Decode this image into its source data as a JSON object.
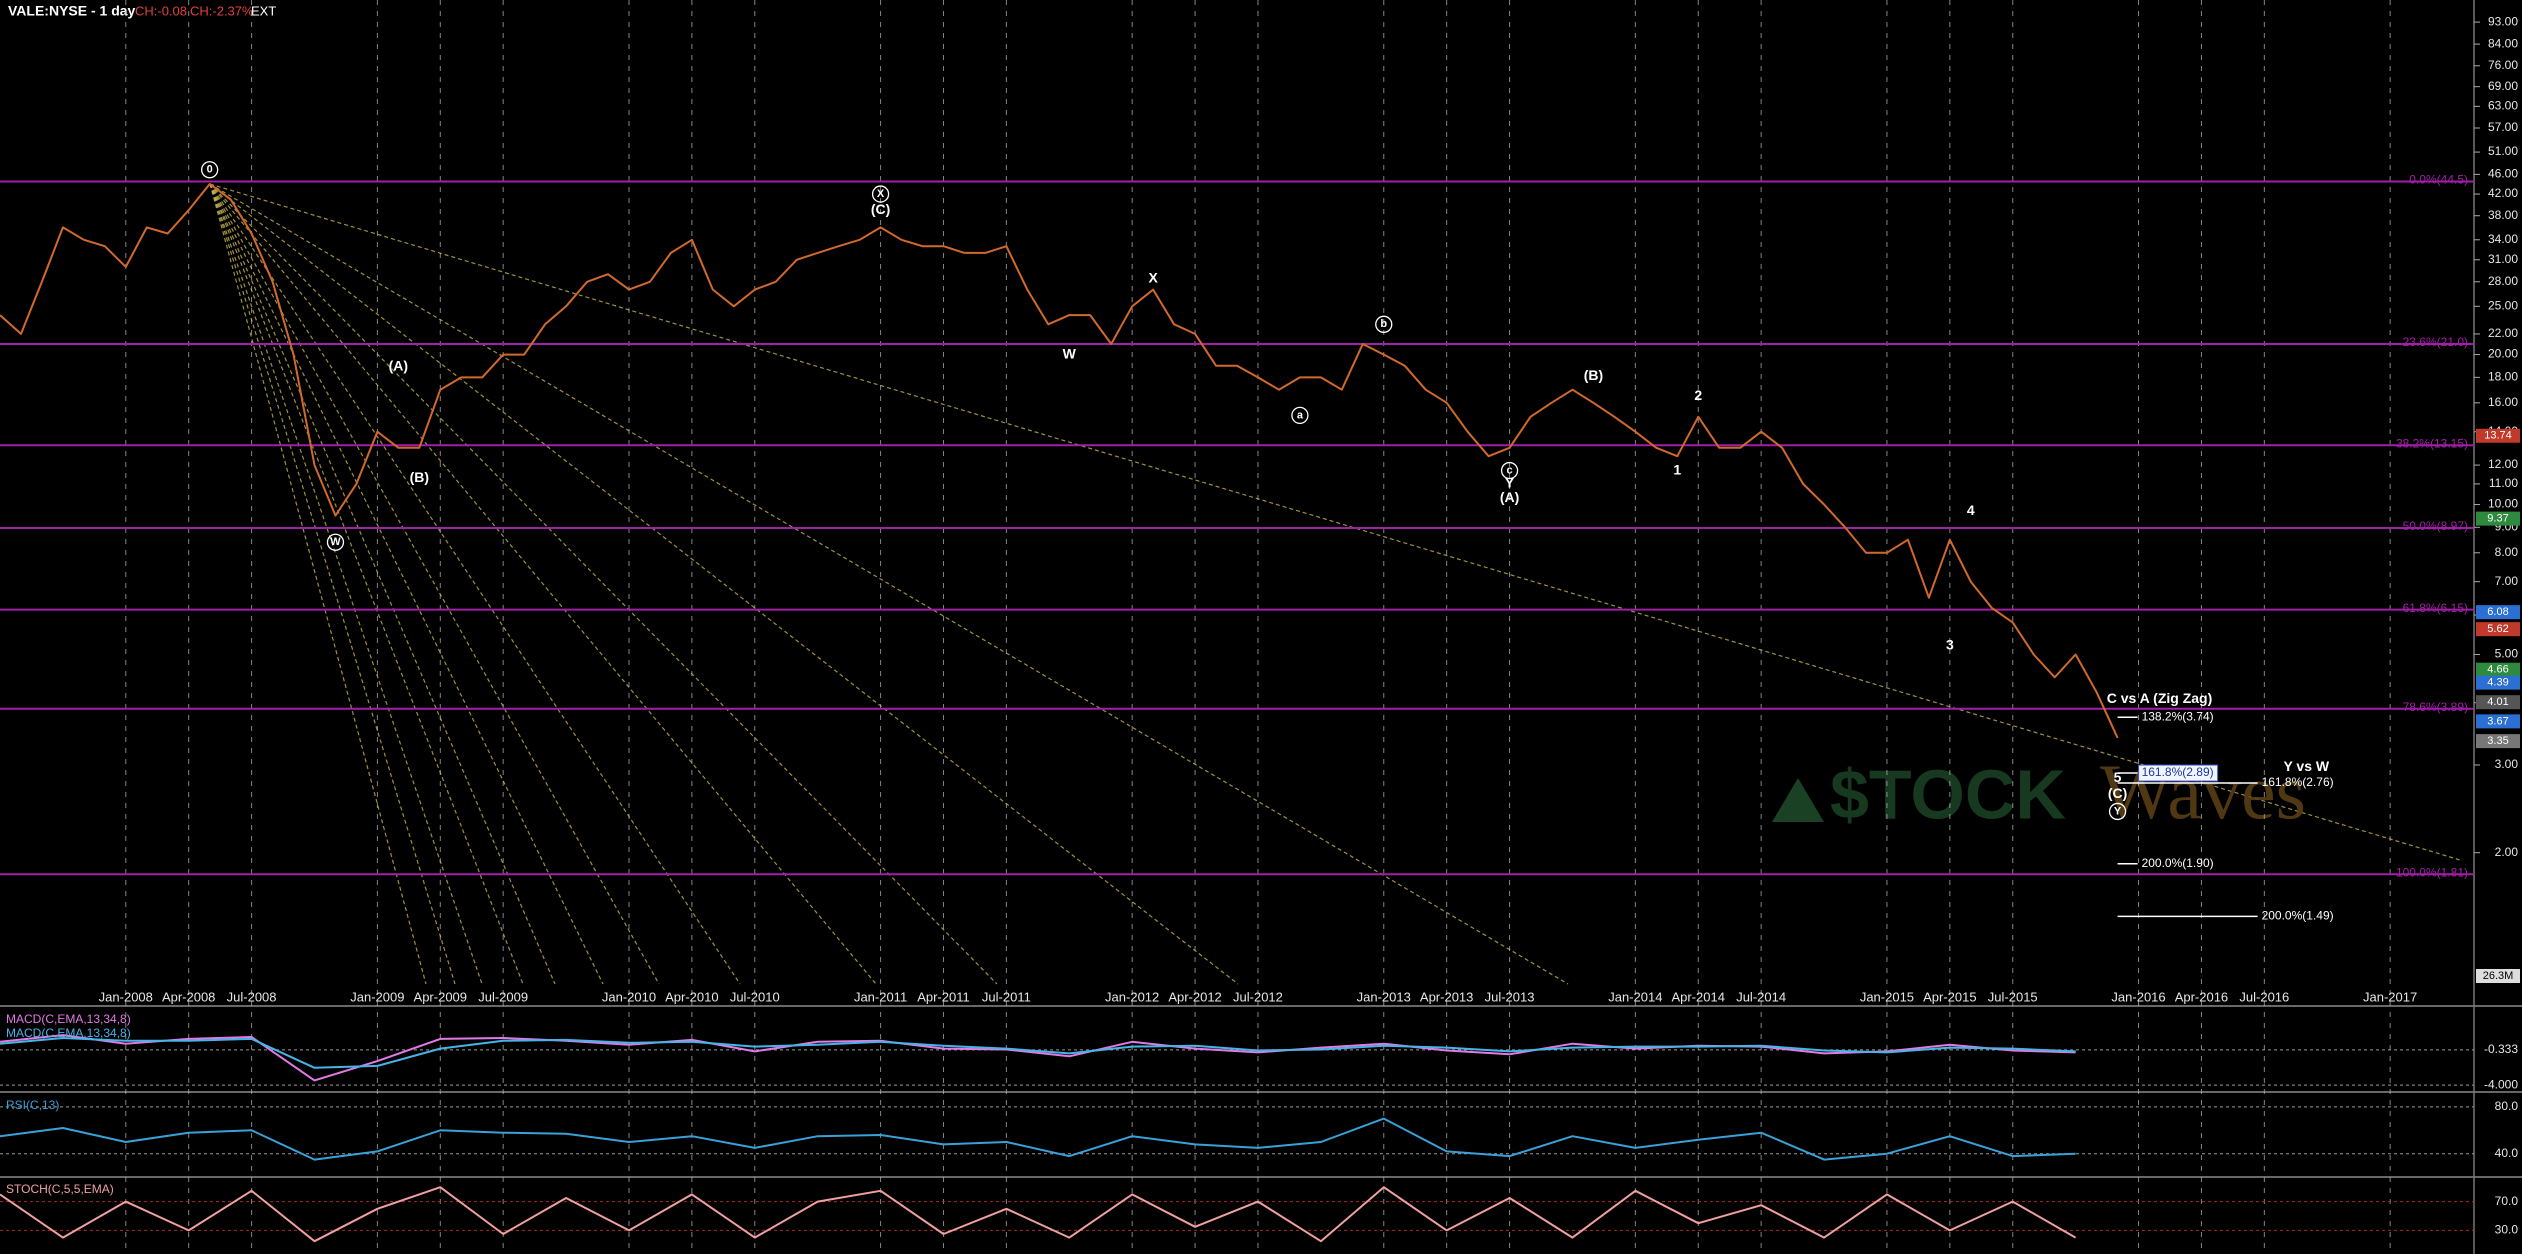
{
  "header": {
    "symbol": "VALE:NYSE - 1 day",
    "change": "CH:-0.08",
    "change_pct": "CH:-2.37%",
    "session": "EXT"
  },
  "watermark": {
    "brand": "$TOCK",
    "waves": "Waves"
  },
  "chart_data": [
    {
      "type": "line",
      "log_scale": true,
      "grid": "x",
      "color": "#d2692c",
      "x": [
        "2007-07",
        "2007-08",
        "2007-09",
        "2007-10",
        "2007-11",
        "2007-12",
        "2008-01",
        "2008-02",
        "2008-03",
        "2008-04",
        "2008-05",
        "2008-06",
        "2008-07",
        "2008-08",
        "2008-09",
        "2008-10",
        "2008-11",
        "2008-12",
        "2009-01",
        "2009-02",
        "2009-03",
        "2009-04",
        "2009-05",
        "2009-06",
        "2009-07",
        "2009-08",
        "2009-09",
        "2009-10",
        "2009-11",
        "2009-12",
        "2010-01",
        "2010-02",
        "2010-03",
        "2010-04",
        "2010-05",
        "2010-06",
        "2010-07",
        "2010-08",
        "2010-09",
        "2010-10",
        "2010-11",
        "2010-12",
        "2011-01",
        "2011-02",
        "2011-03",
        "2011-04",
        "2011-05",
        "2011-06",
        "2011-07",
        "2011-08",
        "2011-09",
        "2011-10",
        "2011-11",
        "2011-12",
        "2012-01",
        "2012-02",
        "2012-03",
        "2012-04",
        "2012-05",
        "2012-06",
        "2012-07",
        "2012-08",
        "2012-09",
        "2012-10",
        "2012-11",
        "2012-12",
        "2013-01",
        "2013-02",
        "2013-03",
        "2013-04",
        "2013-05",
        "2013-06",
        "2013-07",
        "2013-08",
        "2013-09",
        "2013-10",
        "2013-11",
        "2013-12",
        "2014-01",
        "2014-02",
        "2014-03",
        "2014-04",
        "2014-05",
        "2014-06",
        "2014-07",
        "2014-08",
        "2014-09",
        "2014-10",
        "2014-11",
        "2014-12",
        "2015-01",
        "2015-02",
        "2015-03",
        "2015-04",
        "2015-05",
        "2015-06",
        "2015-07",
        "2015-08",
        "2015-09",
        "2015-10",
        "2015-11",
        "2015-12"
      ],
      "values": [
        24,
        22,
        28,
        36,
        34,
        33,
        30,
        36,
        35,
        39,
        44,
        41,
        35,
        28,
        20,
        12,
        9.5,
        11,
        14,
        13,
        13,
        17,
        18,
        18,
        20,
        20,
        23,
        25,
        28,
        29,
        27,
        28,
        32,
        34,
        27,
        25,
        27,
        28,
        31,
        32,
        33,
        34,
        36,
        34,
        33,
        33,
        32,
        32,
        33,
        27,
        23,
        24,
        24,
        21,
        25,
        27,
        23,
        22,
        19,
        19,
        18,
        17,
        18,
        18,
        17,
        21,
        20,
        19,
        17,
        16,
        14,
        12.5,
        13,
        15,
        16,
        17,
        16,
        15,
        14,
        13,
        12.5,
        15,
        13,
        13,
        14,
        13,
        11,
        10,
        9,
        8,
        8,
        8.5,
        6.5,
        8.5,
        7,
        6.2,
        5.8,
        5,
        4.5,
        5,
        4.2,
        3.4
      ],
      "xlim": [
        "2007-07",
        "2017-05"
      ],
      "xticks": [
        {
          "value": "2008-01",
          "label": "Jan-2008"
        },
        {
          "value": "2008-04",
          "label": "Apr-2008"
        },
        {
          "value": "2008-07",
          "label": "Jul-2008"
        },
        {
          "value": "2009-01",
          "label": "Jan-2009"
        },
        {
          "value": "2009-04",
          "label": "Apr-2009"
        },
        {
          "value": "2009-07",
          "label": "Jul-2009"
        },
        {
          "value": "2010-01",
          "label": "Jan-2010"
        },
        {
          "value": "2010-04",
          "label": "Apr-2010"
        },
        {
          "value": "2010-07",
          "label": "Jul-2010"
        },
        {
          "value": "2011-01",
          "label": "Jan-2011"
        },
        {
          "value": "2011-04",
          "label": "Apr-2011"
        },
        {
          "value": "2011-07",
          "label": "Jul-2011"
        },
        {
          "value": "2012-01",
          "label": "Jan-2012"
        },
        {
          "value": "2012-04",
          "label": "Apr-2012"
        },
        {
          "value": "2012-07",
          "label": "Jul-2012"
        },
        {
          "value": "2013-01",
          "label": "Jan-2013"
        },
        {
          "value": "2013-04",
          "label": "Apr-2013"
        },
        {
          "value": "2013-07",
          "label": "Jul-2013"
        },
        {
          "value": "2014-01",
          "label": "Jan-2014"
        },
        {
          "value": "2014-04",
          "label": "Apr-2014"
        },
        {
          "value": "2014-07",
          "label": "Jul-2014"
        },
        {
          "value": "2015-01",
          "label": "Jan-2015"
        },
        {
          "value": "2015-04",
          "label": "Apr-2015"
        },
        {
          "value": "2015-07",
          "label": "Jul-2015"
        },
        {
          "value": "2016-01",
          "label": "Jan-2016"
        },
        {
          "value": "2016-04",
          "label": "Apr-2016"
        },
        {
          "value": "2016-07",
          "label": "Jul-2016"
        },
        {
          "value": "2017-01",
          "label": "Jan-2017"
        }
      ],
      "ylim": [
        1.09,
        103
      ],
      "yticks": [
        {
          "value": 93,
          "label": "93.00"
        },
        {
          "value": 84,
          "label": "84.00"
        },
        {
          "value": 76,
          "label": "76.00"
        },
        {
          "value": 69,
          "label": "69.00"
        },
        {
          "value": 63,
          "label": "63.00"
        },
        {
          "value": 57,
          "label": "57.00"
        },
        {
          "value": 51,
          "label": "51.00"
        },
        {
          "value": 46,
          "label": "46.00"
        },
        {
          "value": 42,
          "label": "42.00"
        },
        {
          "value": 38,
          "label": "38.00"
        },
        {
          "value": 34,
          "label": "34.00"
        },
        {
          "value": 31,
          "label": "31.00"
        },
        {
          "value": 28,
          "label": "28.00"
        },
        {
          "value": 25,
          "label": "25.00"
        },
        {
          "value": 22,
          "label": "22.00"
        },
        {
          "value": 20,
          "label": "20.00"
        },
        {
          "value": 18,
          "label": "18.00"
        },
        {
          "value": 16,
          "label": "16.00"
        },
        {
          "value": 14,
          "label": "14.00"
        },
        {
          "value": 12,
          "label": "12.00"
        },
        {
          "value": 11,
          "label": "11.00"
        },
        {
          "value": 10,
          "label": "10.00"
        },
        {
          "value": 9,
          "label": "9.00"
        },
        {
          "value": 8,
          "label": "8.00"
        },
        {
          "value": 7,
          "label": "7.00"
        },
        {
          "value": 6,
          "label": "6.00"
        },
        {
          "value": 5,
          "label": "5.00"
        },
        {
          "value": 4,
          "label": "4.00"
        },
        {
          "value": 3,
          "label": "3.00"
        },
        {
          "value": 2,
          "label": "2.00"
        }
      ],
      "fib_color": "#a21fa8",
      "fib_levels": [
        {
          "value": 44.5,
          "label": "0.0%(44.5)"
        },
        {
          "value": 21,
          "label": "23.6%(21.0)"
        },
        {
          "value": 13.15,
          "label": "38.2%(13.15)"
        },
        {
          "value": 8.97,
          "label": "50.0%(8.97)"
        },
        {
          "value": 6.15,
          "label": "61.8%(6.15)"
        },
        {
          "value": 3.89,
          "label": "78.6%(3.89)"
        },
        {
          "value": 1.81,
          "label": "100.0%(1.81)"
        }
      ],
      "projections": [
        {
          "value": 3.74,
          "label": "138.2%(3.74)"
        },
        {
          "value": 2.89,
          "label": "161.8%(2.89)",
          "boxed": true
        },
        {
          "value": 2.76,
          "label": "161.8%(2.76)",
          "extended": true
        },
        {
          "value": 1.9,
          "label": "200.0%(1.90)"
        },
        {
          "value": 1.49,
          "label": "200.0%(1.49)",
          "extended": true
        }
      ],
      "annotations": [
        {
          "text": "0",
          "x": "2008-05",
          "y": 47,
          "circled": true
        },
        {
          "text": "X",
          "x": "2011-01",
          "y": 42,
          "circled": true
        },
        {
          "text": "(C)",
          "x": "2011-01",
          "y": 39,
          "circled": false
        },
        {
          "text": "(A)",
          "x": "2009-02",
          "y": 18.9,
          "circled": false
        },
        {
          "text": "(B)",
          "x": "2009-03",
          "y": 11.3,
          "circled": false
        },
        {
          "text": "W",
          "x": "2008-11",
          "y": 8.4,
          "circled": true
        },
        {
          "text": "W",
          "x": "2011-10",
          "y": 20,
          "circled": false
        },
        {
          "text": "X",
          "x": "2012-02",
          "y": 28.4,
          "circled": false
        },
        {
          "text": "a",
          "x": "2012-09",
          "y": 15.1,
          "circled": true
        },
        {
          "text": "b",
          "x": "2013-01",
          "y": 23,
          "circled": true
        },
        {
          "text": "c",
          "x": "2013-07",
          "y": 11.7,
          "circled": true
        },
        {
          "text": "Y",
          "x": "2013-07",
          "y": 11,
          "circled": false
        },
        {
          "text": "(A)",
          "x": "2013-07",
          "y": 10.3,
          "circled": false
        },
        {
          "text": "(B)",
          "x": "2013-11",
          "y": 18.1,
          "circled": false
        },
        {
          "text": "2",
          "x": "2014-04",
          "y": 16.5,
          "circled": false
        },
        {
          "text": "1",
          "x": "2014-03",
          "y": 11.7,
          "circled": false
        },
        {
          "text": "4",
          "x": "2015-05",
          "y": 9.7,
          "circled": false
        },
        {
          "text": "3",
          "x": "2015-04",
          "y": 5.2,
          "circled": false
        },
        {
          "text": "5",
          "x": "2015-12",
          "y": 2.82,
          "circled": false
        },
        {
          "text": "(C)",
          "x": "2015-12",
          "y": 2.62,
          "circled": false
        },
        {
          "text": "Y",
          "x": "2015-12",
          "y": 2.42,
          "circled": true
        },
        {
          "text": "C vs A (Zig Zag)",
          "x": "2016-02",
          "y": 4.06,
          "circled": false
        },
        {
          "text": "Y vs W",
          "x": "2016-09",
          "y": 2.97,
          "circled": false
        }
      ],
      "price_tags": [
        {
          "value": 13.74,
          "color": "#c0392b"
        },
        {
          "value": 9.37,
          "color": "#2e8b3e"
        },
        {
          "value": 6.08,
          "color": "#2a6fd1"
        },
        {
          "value": 5.62,
          "color": "#c0392b"
        },
        {
          "value": 4.66,
          "color": "#2e8b3e"
        },
        {
          "value": 4.39,
          "color": "#2a6fd1"
        },
        {
          "value": 4.01,
          "color": "#555555"
        },
        {
          "value": 3.67,
          "color": "#2a6fd1"
        },
        {
          "value": 3.35,
          "color": "#777777"
        }
      ],
      "volume_label": "26.3M"
    },
    {
      "type": "line",
      "grid": true,
      "grid_color": "#9a9a9a",
      "x": [
        "2007-07",
        "2007-10",
        "2008-01",
        "2008-04",
        "2008-07",
        "2008-10",
        "2009-01",
        "2009-04",
        "2009-07",
        "2009-10",
        "2010-01",
        "2010-04",
        "2010-07",
        "2010-10",
        "2011-01",
        "2011-04",
        "2011-07",
        "2011-10",
        "2012-01",
        "2012-04",
        "2012-07",
        "2012-10",
        "2013-01",
        "2013-04",
        "2013-07",
        "2013-10",
        "2014-01",
        "2014-04",
        "2014-07",
        "2014-10",
        "2015-01",
        "2015-04",
        "2015-07",
        "2015-10"
      ],
      "xlim": [
        "2007-07",
        "2017-05"
      ],
      "ylim": [
        -4.5,
        3.8
      ],
      "yticks": [
        {
          "value": -0.333,
          "label": "-0.333"
        },
        {
          "value": -4,
          "label": "-4.000"
        }
      ],
      "series": [
        {
          "name": "MACD(C,EMA,13,34,8)",
          "color": "#e27ae6",
          "values": [
            0.5,
            1.2,
            0.3,
            0.8,
            1.0,
            -3.5,
            -1.5,
            0.8,
            0.9,
            0.6,
            0.2,
            0.7,
            -0.5,
            0.5,
            0.6,
            -0.2,
            -0.3,
            -1.0,
            0.5,
            -0.2,
            -0.6,
            -0.1,
            0.3,
            -0.4,
            -0.8,
            0.3,
            -0.2,
            0.1,
            0.0,
            -0.7,
            -0.5,
            0.2,
            -0.4,
            -0.6
          ]
        },
        {
          "name": "MACD(C,EMA,13,34,8)",
          "color": "#45b4e6",
          "values": [
            0.3,
            0.9,
            0.6,
            0.6,
            0.8,
            -2.2,
            -2.0,
            -0.2,
            0.6,
            0.7,
            0.4,
            0.5,
            0,
            0.2,
            0.5,
            0.1,
            -0.2,
            -0.7,
            0,
            0.1,
            -0.4,
            -0.3,
            0.1,
            -0.1,
            -0.5,
            -0.1,
            0,
            0,
            0.1,
            -0.4,
            -0.6,
            -0.1,
            -0.2,
            -0.5
          ]
        }
      ]
    },
    {
      "type": "line",
      "grid": true,
      "grid_color": "#9a9a9a",
      "x": [
        "2007-07",
        "2007-10",
        "2008-01",
        "2008-04",
        "2008-07",
        "2008-10",
        "2009-01",
        "2009-04",
        "2009-07",
        "2009-10",
        "2010-01",
        "2010-04",
        "2010-07",
        "2010-10",
        "2011-01",
        "2011-04",
        "2011-07",
        "2011-10",
        "2012-01",
        "2012-04",
        "2012-07",
        "2012-10",
        "2013-01",
        "2013-04",
        "2013-07",
        "2013-10",
        "2014-01",
        "2014-04",
        "2014-07",
        "2014-10",
        "2015-01",
        "2015-04",
        "2015-07",
        "2015-10"
      ],
      "xlim": [
        "2007-07",
        "2017-05"
      ],
      "ylim": [
        22.7,
        89.3
      ],
      "yticks": [
        {
          "value": 80,
          "label": "80.0"
        },
        {
          "value": 40,
          "label": "40.0"
        }
      ],
      "series": [
        {
          "name": "RSI(C,13)",
          "color": "#3aa0d8",
          "values": [
            55,
            62,
            50,
            58,
            60,
            35,
            42,
            60,
            58,
            57,
            50,
            55,
            45,
            55,
            56,
            48,
            50,
            38,
            55,
            48,
            45,
            50,
            70,
            42,
            38,
            55,
            45,
            52,
            58,
            35,
            40,
            55,
            38,
            40
          ]
        }
      ]
    },
    {
      "type": "line",
      "grid": true,
      "grid_color": "#b02a2a",
      "x": [
        "2007-07",
        "2007-10",
        "2008-01",
        "2008-04",
        "2008-07",
        "2008-10",
        "2009-01",
        "2009-04",
        "2009-07",
        "2009-10",
        "2010-01",
        "2010-04",
        "2010-07",
        "2010-10",
        "2011-01",
        "2011-04",
        "2011-07",
        "2011-10",
        "2012-01",
        "2012-04",
        "2012-07",
        "2012-10",
        "2013-01",
        "2013-04",
        "2013-07",
        "2013-10",
        "2014-01",
        "2014-04",
        "2014-07",
        "2014-10",
        "2015-01",
        "2015-04",
        "2015-07",
        "2015-10"
      ],
      "xlim": [
        "2007-07",
        "2017-05"
      ],
      "ylim": [
        0,
        100
      ],
      "yticks": [
        {
          "value": 70,
          "label": "70.0"
        },
        {
          "value": 30,
          "label": "30.0"
        }
      ],
      "series": [
        {
          "name": "STOCH(C,5,5,EMA)",
          "color": "#f0a0a0",
          "values": [
            80,
            20,
            70,
            30,
            85,
            15,
            60,
            90,
            25,
            75,
            30,
            80,
            20,
            70,
            85,
            25,
            60,
            20,
            80,
            35,
            70,
            15,
            90,
            30,
            75,
            20,
            85,
            40,
            65,
            20,
            80,
            30,
            70,
            20
          ]
        }
      ]
    }
  ]
}
